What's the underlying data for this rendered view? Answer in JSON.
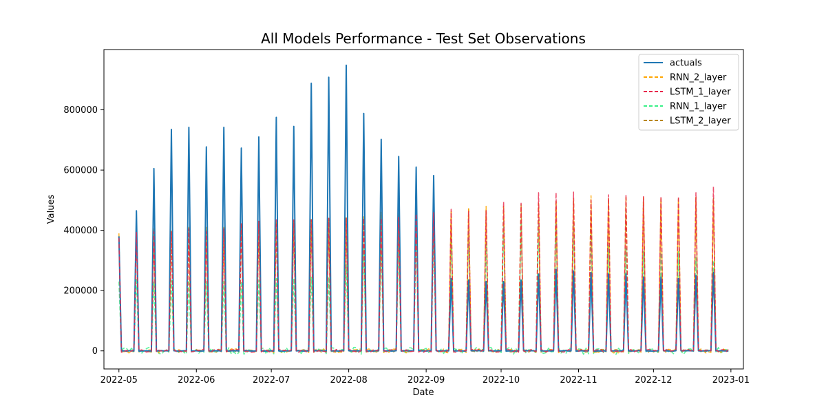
{
  "chart_data": {
    "type": "line",
    "title": "All Models Performance - Test Set Observations",
    "xlabel": "Date",
    "ylabel": "Values",
    "x_range": [
      "2022-04-25",
      "2023-01-06"
    ],
    "ylim": [
      -60000,
      1000000
    ],
    "x_ticks": [
      "2022-05",
      "2022-06",
      "2022-07",
      "2022-08",
      "2022-09",
      "2022-10",
      "2022-11",
      "2022-12",
      "2023-01"
    ],
    "y_ticks": [
      0,
      200000,
      400000,
      600000,
      800000
    ],
    "y_tick_labels": [
      "0",
      "200000",
      "400000",
      "600000",
      "800000"
    ],
    "grid": false,
    "legend_position": "top-right",
    "peak_dates": [
      "2022-05-01",
      "2022-05-08",
      "2022-05-15",
      "2022-05-22",
      "2022-05-29",
      "2022-06-05",
      "2022-06-12",
      "2022-06-19",
      "2022-06-26",
      "2022-07-03",
      "2022-07-10",
      "2022-07-17",
      "2022-07-24",
      "2022-07-31",
      "2022-08-07",
      "2022-08-14",
      "2022-08-21",
      "2022-08-28",
      "2022-09-04",
      "2022-09-11",
      "2022-09-18",
      "2022-09-25",
      "2022-10-02",
      "2022-10-09",
      "2022-10-16",
      "2022-10-23",
      "2022-10-30",
      "2022-11-06",
      "2022-11-13",
      "2022-11-20",
      "2022-11-27",
      "2022-12-04",
      "2022-12-11",
      "2022-12-18",
      "2022-12-25"
    ],
    "series": [
      {
        "name": "actuals",
        "color": "#1f77b4",
        "dashed": false,
        "peaks": [
          380000,
          465000,
          605000,
          735000,
          742000,
          677000,
          742000,
          673000,
          710000,
          775000,
          745000,
          888000,
          908000,
          948000,
          788000,
          702000,
          645000,
          610000,
          582000,
          240000,
          235000,
          230000,
          230000,
          235000,
          255000,
          270000,
          265000,
          260000,
          255000,
          255000,
          245000,
          245000,
          240000,
          250000,
          260000
        ]
      },
      {
        "name": "RNN_2_layer",
        "color": "#ffa500",
        "dashed": true,
        "peaks": [
          390000,
          405000,
          405000,
          400000,
          410000,
          410000,
          410000,
          425000,
          430000,
          430000,
          435000,
          440000,
          445000,
          445000,
          445000,
          460000,
          460000,
          470000,
          475000,
          465000,
          475000,
          480000,
          480000,
          480000,
          490000,
          500000,
          505000,
          515000,
          505000,
          510000,
          510000,
          505000,
          505000,
          510000,
          500000
        ]
      },
      {
        "name": "LSTM_1_layer",
        "color": "#e8254a",
        "dashed": true,
        "peaks": [
          375000,
          395000,
          395000,
          395000,
          405000,
          395000,
          405000,
          425000,
          430000,
          435000,
          435000,
          435000,
          440000,
          440000,
          440000,
          440000,
          445000,
          455000,
          460000,
          470000,
          465000,
          465000,
          495000,
          490000,
          525000,
          525000,
          527000,
          500000,
          518000,
          518000,
          512000,
          512000,
          512000,
          525000,
          545000
        ]
      },
      {
        "name": "RNN_1_layer",
        "color": "#37f087",
        "dashed": true,
        "peaks": [
          230000,
          240000,
          230000,
          235000,
          235000,
          230000,
          230000,
          230000,
          235000,
          240000,
          240000,
          245000,
          245000,
          285000,
          340000,
          350000,
          360000,
          375000,
          380000,
          380000,
          400000,
          360000,
          430000,
          435000,
          435000,
          430000,
          430000,
          400000,
          350000,
          340000,
          330000,
          325000,
          330000,
          310000,
          300000
        ]
      },
      {
        "name": "LSTM_2_layer",
        "color": "#b8860b",
        "dashed": true,
        "peaks": [
          380000,
          400000,
          400000,
          395000,
          405000,
          400000,
          405000,
          420000,
          425000,
          430000,
          430000,
          435000,
          435000,
          440000,
          440000,
          450000,
          455000,
          460000,
          465000,
          460000,
          470000,
          470000,
          480000,
          485000,
          490000,
          495000,
          500000,
          500000,
          505000,
          505000,
          505000,
          505000,
          505000,
          510000,
          510000
        ]
      }
    ]
  }
}
